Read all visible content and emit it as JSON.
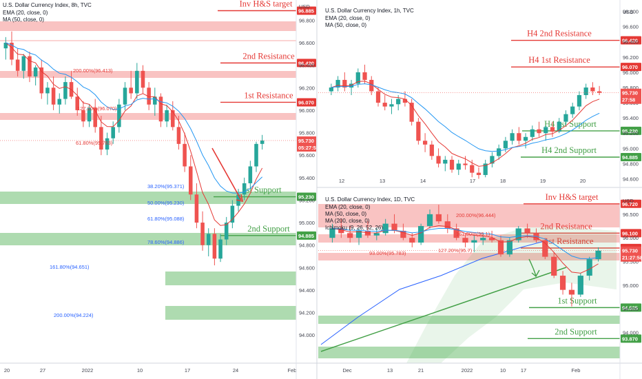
{
  "chart_data": [
    {
      "id": "p8h",
      "type": "candlestick",
      "title": "U.S. Dollar Currency Index, 8h, TVC",
      "indicators": [
        "EMA (20, close, 0)",
        "MA (50, close, 0)"
      ],
      "currency": "USD",
      "ylim": [
        93.75,
        96.98
      ],
      "yticks": [
        "96.800",
        "96.600",
        "96.400",
        "96.200",
        "96.000",
        "95.800",
        "95.600",
        "95.400",
        "95.200",
        "95.000",
        "94.800",
        "94.600",
        "94.400",
        "94.200",
        "94.000"
      ],
      "xticks": [
        "20",
        "27",
        "2022",
        "10",
        "17",
        "24",
        "Feb"
      ],
      "last_price": "95.730",
      "countdown": "05:27:58",
      "zones": [
        {
          "label": "Inv H&S target",
          "price": "96.885",
          "color": "red"
        },
        {
          "label": "2nd Resistance",
          "price": "96.420",
          "color": "red"
        },
        {
          "label": "1st Resistance",
          "price": "96.070",
          "color": "red"
        },
        {
          "label": "1st Support",
          "price": "95.230",
          "color": "green"
        },
        {
          "label": "2nd Support",
          "price": "94.885",
          "color": "green"
        }
      ],
      "fibs": [
        "200.00%(96.413)",
        "127.20%(96.070)",
        "61.80%(95.763)",
        "38.20%(95.371)",
        "50.00%(95.230)",
        "61.80%(95.088)",
        "78.60%(94.886)",
        "161.80%(94.651)",
        "200.00%(94.224)"
      ],
      "candles": [
        [
          96.55,
          96.65,
          96.45,
          96.6
        ],
        [
          96.6,
          96.7,
          96.4,
          96.45
        ],
        [
          96.45,
          96.55,
          96.3,
          96.35
        ],
        [
          96.35,
          96.5,
          96.28,
          96.48
        ],
        [
          96.48,
          96.52,
          96.25,
          96.3
        ],
        [
          96.3,
          96.4,
          96.22,
          96.38
        ],
        [
          96.38,
          96.45,
          96.1,
          96.15
        ],
        [
          96.15,
          96.25,
          96.05,
          96.2
        ],
        [
          96.2,
          96.3,
          96.0,
          96.05
        ],
        [
          96.05,
          96.15,
          95.97,
          96.1
        ],
        [
          96.1,
          96.3,
          96.05,
          96.25
        ],
        [
          96.25,
          96.35,
          96.1,
          96.12
        ],
        [
          96.12,
          96.2,
          95.95,
          96.0
        ],
        [
          96.0,
          96.08,
          95.85,
          95.9
        ],
        [
          95.9,
          96.05,
          95.85,
          96.02
        ],
        [
          96.02,
          96.1,
          95.8,
          95.85
        ],
        [
          95.85,
          95.95,
          95.6,
          95.65
        ],
        [
          95.65,
          95.8,
          95.6,
          95.75
        ],
        [
          95.75,
          95.9,
          95.7,
          95.85
        ],
        [
          95.85,
          96.1,
          95.8,
          96.05
        ],
        [
          96.05,
          96.25,
          96.0,
          96.2
        ],
        [
          96.2,
          96.35,
          96.1,
          96.15
        ],
        [
          96.15,
          96.42,
          96.1,
          96.35
        ],
        [
          96.35,
          96.4,
          96.15,
          96.2
        ],
        [
          96.2,
          96.25,
          96.0,
          96.05
        ],
        [
          96.05,
          96.2,
          95.95,
          96.12
        ],
        [
          96.12,
          96.15,
          95.85,
          95.9
        ],
        [
          95.9,
          96.05,
          95.85,
          96.0
        ],
        [
          96.0,
          96.08,
          95.82,
          95.85
        ],
        [
          95.85,
          95.95,
          95.65,
          95.7
        ],
        [
          95.7,
          95.8,
          95.45,
          95.5
        ],
        [
          95.5,
          95.6,
          95.2,
          95.25
        ],
        [
          95.25,
          95.35,
          94.95,
          95.0
        ],
        [
          95.0,
          95.1,
          94.75,
          94.8
        ],
        [
          94.8,
          94.95,
          94.7,
          94.9
        ],
        [
          94.9,
          94.95,
          94.62,
          94.68
        ],
        [
          94.68,
          94.9,
          94.65,
          94.85
        ],
        [
          94.85,
          95.05,
          94.8,
          95.0
        ],
        [
          95.0,
          95.2,
          94.95,
          95.15
        ],
        [
          95.15,
          95.3,
          95.1,
          95.25
        ],
        [
          95.25,
          95.4,
          95.2,
          95.35
        ],
        [
          95.35,
          95.55,
          95.3,
          95.5
        ],
        [
          95.5,
          95.72,
          95.45,
          95.7
        ],
        [
          95.7,
          95.78,
          95.65,
          95.73
        ]
      ]
    },
    {
      "id": "p1h",
      "type": "candlestick",
      "title": "U.S. Dollar Currency Index, 1h, TVC",
      "indicators": [
        "EMA (20, close, 0)",
        "MA (50, close, 0)"
      ],
      "currency": "USD",
      "ylim": [
        94.55,
        96.95
      ],
      "yticks": [
        "96.800",
        "96.600",
        "96.400",
        "96.200",
        "96.000",
        "95.800",
        "95.600",
        "95.400",
        "95.200",
        "95.000",
        "94.800",
        "94.600"
      ],
      "xticks": [
        "12",
        "13",
        "14",
        "17",
        "18",
        "19",
        "20"
      ],
      "last_price": "95.730",
      "countdown": "27:58",
      "zones": [
        {
          "label": "H4 2nd Resistance",
          "price": "96.420",
          "color": "red"
        },
        {
          "label": "H4 1st Resistance",
          "price": "96.070",
          "color": "red"
        },
        {
          "label": "H4 1st Support",
          "price": "95.230",
          "color": "green"
        },
        {
          "label": "H4 2nd Support",
          "price": "94.885",
          "color": "green"
        }
      ],
      "candles": [
        [
          95.75,
          95.85,
          95.7,
          95.8
        ],
        [
          95.8,
          95.95,
          95.75,
          95.9
        ],
        [
          95.9,
          96.0,
          95.75,
          95.8
        ],
        [
          95.8,
          95.9,
          95.7,
          95.85
        ],
        [
          95.85,
          96.05,
          95.8,
          96.0
        ],
        [
          96.0,
          96.1,
          95.85,
          95.9
        ],
        [
          95.9,
          95.95,
          95.7,
          95.75
        ],
        [
          95.75,
          95.8,
          95.55,
          95.6
        ],
        [
          95.6,
          95.7,
          95.5,
          95.55
        ],
        [
          95.55,
          95.65,
          95.45,
          95.58
        ],
        [
          95.58,
          95.7,
          95.5,
          95.65
        ],
        [
          95.65,
          95.75,
          95.55,
          95.6
        ],
        [
          95.6,
          95.65,
          95.3,
          95.35
        ],
        [
          95.35,
          95.4,
          95.05,
          95.1
        ],
        [
          95.1,
          95.2,
          94.95,
          95.05
        ],
        [
          95.05,
          95.1,
          94.85,
          94.9
        ],
        [
          94.9,
          95.0,
          94.75,
          94.8
        ],
        [
          94.8,
          94.9,
          94.7,
          94.85
        ],
        [
          94.85,
          94.9,
          94.68,
          94.72
        ],
        [
          94.72,
          94.85,
          94.65,
          94.8
        ],
        [
          94.8,
          94.9,
          94.72,
          94.78
        ],
        [
          94.78,
          94.85,
          94.62,
          94.68
        ],
        [
          94.68,
          94.75,
          94.6,
          94.65
        ],
        [
          94.65,
          94.85,
          94.62,
          94.8
        ],
        [
          94.8,
          94.95,
          94.75,
          94.9
        ],
        [
          94.9,
          95.05,
          94.85,
          95.0
        ],
        [
          95.0,
          95.15,
          94.95,
          95.1
        ],
        [
          95.1,
          95.25,
          95.05,
          95.2
        ],
        [
          95.2,
          95.28,
          95.05,
          95.1
        ],
        [
          95.1,
          95.2,
          95.0,
          95.15
        ],
        [
          95.15,
          95.3,
          95.1,
          95.25
        ],
        [
          95.25,
          95.35,
          95.15,
          95.2
        ],
        [
          95.2,
          95.3,
          95.1,
          95.28
        ],
        [
          95.28,
          95.35,
          95.15,
          95.22
        ],
        [
          95.22,
          95.4,
          95.2,
          95.35
        ],
        [
          95.35,
          95.5,
          95.3,
          95.45
        ],
        [
          95.45,
          95.6,
          95.4,
          95.55
        ],
        [
          95.55,
          95.75,
          95.5,
          95.7
        ],
        [
          95.7,
          95.85,
          95.65,
          95.8
        ],
        [
          95.8,
          95.87,
          95.7,
          95.75
        ],
        [
          95.75,
          95.82,
          95.7,
          95.73
        ]
      ]
    },
    {
      "id": "p1d",
      "type": "candlestick",
      "title": "U.S. Dollar Currency Index, 1D, TVC",
      "indicators": [
        "EMA (20, close, 0)",
        "MA (50, close, 0)",
        "MA (200, close, 0)",
        "Ichimoku (9, 26, 52, 26)"
      ],
      "currency": "USD",
      "ylim": [
        93.35,
        96.95
      ],
      "yticks": [
        "96.500",
        "96.000",
        "95.500",
        "95.000",
        "94.500",
        "94.000"
      ],
      "xticks": [
        "Dec",
        "13",
        "21",
        "2022",
        "10",
        "17",
        "Feb"
      ],
      "last_price": "95.730",
      "countdown": "21:27:58",
      "zones": [
        {
          "label": "Inv H&S target",
          "price": "96.720",
          "color": "red"
        },
        {
          "label": "2nd Resistance",
          "price": "96.100",
          "color": "red"
        },
        {
          "label": "1st Resistance",
          "price": "95.785",
          "color": "red"
        },
        {
          "label": "1st Support",
          "price": "94.525",
          "color": "green"
        },
        {
          "label": "2nd Support",
          "price": "93.870",
          "color": "green"
        }
      ],
      "fibs": [
        "200.00%(96.444)",
        "161.80%(96.1)",
        "127.20%(95.7)",
        "93.00%(95.783)"
      ],
      "candles": [
        [
          96.0,
          96.3,
          95.9,
          96.2
        ],
        [
          96.2,
          96.4,
          96.0,
          96.1
        ],
        [
          96.1,
          96.25,
          95.9,
          96.0
        ],
        [
          96.0,
          96.2,
          95.85,
          96.15
        ],
        [
          96.15,
          96.35,
          96.0,
          96.05
        ],
        [
          96.05,
          96.2,
          95.95,
          96.1
        ],
        [
          96.1,
          96.4,
          96.05,
          96.3
        ],
        [
          96.3,
          96.5,
          96.1,
          96.15
        ],
        [
          96.15,
          96.3,
          95.95,
          96.0
        ],
        [
          96.0,
          96.1,
          95.8,
          95.9
        ],
        [
          95.9,
          96.3,
          95.85,
          96.25
        ],
        [
          96.25,
          96.6,
          96.2,
          96.5
        ],
        [
          96.5,
          96.7,
          96.3,
          96.35
        ],
        [
          96.35,
          96.5,
          96.1,
          96.2
        ],
        [
          96.2,
          96.3,
          95.95,
          96.0
        ],
        [
          96.0,
          96.1,
          95.8,
          95.9
        ],
        [
          95.9,
          96.05,
          95.7,
          95.95
        ],
        [
          95.95,
          96.1,
          95.85,
          96.0
        ],
        [
          96.0,
          96.15,
          95.9,
          95.95
        ],
        [
          95.95,
          96.05,
          95.6,
          95.65
        ],
        [
          95.65,
          96.0,
          95.6,
          95.95
        ],
        [
          95.95,
          96.25,
          95.9,
          96.2
        ],
        [
          96.2,
          96.3,
          96.0,
          96.1
        ],
        [
          96.1,
          96.2,
          95.9,
          95.95
        ],
        [
          95.95,
          96.0,
          95.55,
          95.6
        ],
        [
          95.6,
          95.7,
          95.15,
          95.2
        ],
        [
          95.2,
          95.3,
          94.8,
          94.9
        ],
        [
          94.9,
          95.05,
          94.55,
          94.8
        ],
        [
          94.8,
          95.25,
          94.75,
          95.2
        ],
        [
          95.2,
          95.6,
          95.1,
          95.55
        ],
        [
          95.55,
          95.8,
          95.5,
          95.73
        ]
      ]
    }
  ]
}
